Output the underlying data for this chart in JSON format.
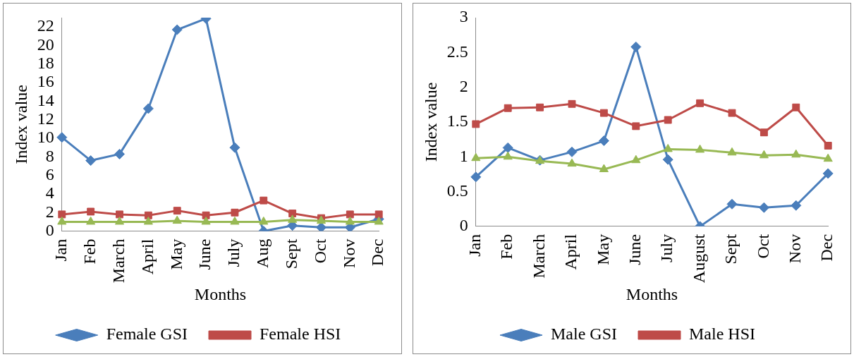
{
  "chart_data": [
    {
      "type": "line",
      "xlabel": "Months",
      "ylabel": "Index value",
      "categories": [
        "Jan",
        "Feb",
        "March",
        "April",
        "May",
        "June",
        "July",
        "Aug",
        "Sept",
        "Oct",
        "Nov",
        "Dec"
      ],
      "series": [
        {
          "name": "Female GSI",
          "color": "#4a7ebb",
          "marker": "diamond",
          "values": [
            10.1,
            7.6,
            8.3,
            13.2,
            21.7,
            22.9,
            9.0,
            0,
            0.6,
            0.4,
            0.4,
            1.3
          ]
        },
        {
          "name": "Female HSI",
          "color": "#be4b48",
          "marker": "square",
          "values": [
            1.8,
            2.1,
            1.8,
            1.7,
            2.2,
            1.7,
            2.0,
            3.3,
            1.9,
            1.4,
            1.8,
            1.8
          ]
        },
        {
          "color": "#98b954",
          "marker": "triangle",
          "values": [
            1.0,
            1.0,
            1.0,
            1.0,
            1.1,
            1.0,
            1.0,
            1.0,
            1.2,
            1.1,
            1.0,
            1.0
          ]
        }
      ],
      "ylim": [
        0,
        23
      ],
      "yticks": [
        0,
        2,
        4,
        6,
        8,
        10,
        12,
        14,
        16,
        18,
        20,
        22
      ],
      "grid": false,
      "legend": "bottom"
    },
    {
      "type": "line",
      "xlabel": "Months",
      "ylabel": "Index value",
      "categories": [
        "Jan",
        "Feb",
        "March",
        "April",
        "May",
        "June",
        "July",
        "August",
        "Sept",
        "Oct",
        "Nov",
        "Dec"
      ],
      "series": [
        {
          "name": "Male GSI",
          "color": "#4a7ebb",
          "marker": "diamond",
          "values": [
            0.71,
            1.13,
            0.95,
            1.07,
            1.23,
            2.58,
            0.96,
            0,
            0.32,
            0.27,
            0.3,
            0.76
          ]
        },
        {
          "name": "Male HSI",
          "color": "#be4b48",
          "marker": "square",
          "values": [
            1.47,
            1.7,
            1.71,
            1.76,
            1.63,
            1.44,
            1.53,
            1.77,
            1.63,
            1.35,
            1.71,
            1.16
          ]
        },
        {
          "color": "#98b954",
          "marker": "triangle",
          "values": [
            0.98,
            1.0,
            0.94,
            0.9,
            0.82,
            0.95,
            1.11,
            1.1,
            1.06,
            1.02,
            1.03,
            0.97
          ]
        }
      ],
      "ylim": [
        0,
        3
      ],
      "yticks": [
        0,
        0.5,
        1,
        1.5,
        2,
        2.5,
        3
      ],
      "grid": false,
      "legend": "bottom"
    }
  ]
}
